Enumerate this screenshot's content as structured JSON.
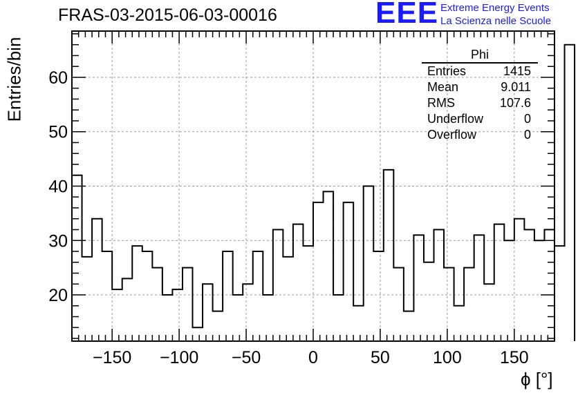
{
  "chart_data": {
    "type": "histogram",
    "title": "FRAS-03-2015-06-03-00016",
    "xlabel": "ϕ [°]",
    "ylabel": "Entries/bin",
    "xlim": [
      -180,
      180
    ],
    "ylim": [
      11.5,
      68.5
    ],
    "grid": true,
    "bin_width": 7.5,
    "bin_edges_start": -180,
    "values": [
      42,
      27,
      34,
      28,
      21,
      23,
      29,
      28,
      25,
      20,
      21,
      25,
      14,
      22,
      17,
      28,
      20,
      22,
      28,
      20,
      32,
      27,
      33,
      29,
      37,
      39,
      20,
      37,
      18,
      40,
      28,
      43,
      25,
      17,
      31,
      26,
      32,
      25,
      18,
      25,
      31,
      22,
      33,
      30,
      34,
      32,
      30,
      32,
      29,
      66
    ],
    "x_ticks": [
      -150,
      -100,
      -50,
      0,
      50,
      100,
      150
    ],
    "x_tick_labels": [
      "−150",
      "−100",
      "−50",
      "0",
      "50",
      "100",
      "150"
    ],
    "y_ticks": [
      20,
      30,
      40,
      50,
      60
    ],
    "y_tick_labels": [
      "20",
      "30",
      "40",
      "50",
      "60"
    ],
    "stats_box": {
      "title": "Phi",
      "rows": [
        {
          "name": "Entries",
          "value": "1415"
        },
        {
          "name": "Mean",
          "value": "9.011"
        },
        {
          "name": "RMS",
          "value": "107.6"
        },
        {
          "name": "Underflow",
          "value": "0"
        },
        {
          "name": "Overflow",
          "value": "0"
        }
      ]
    }
  },
  "logo": {
    "mark": "EEE",
    "line1": "Extreme Energy Events",
    "line2": "La Scienza nelle Scuole",
    "color": "#1a1aff"
  }
}
